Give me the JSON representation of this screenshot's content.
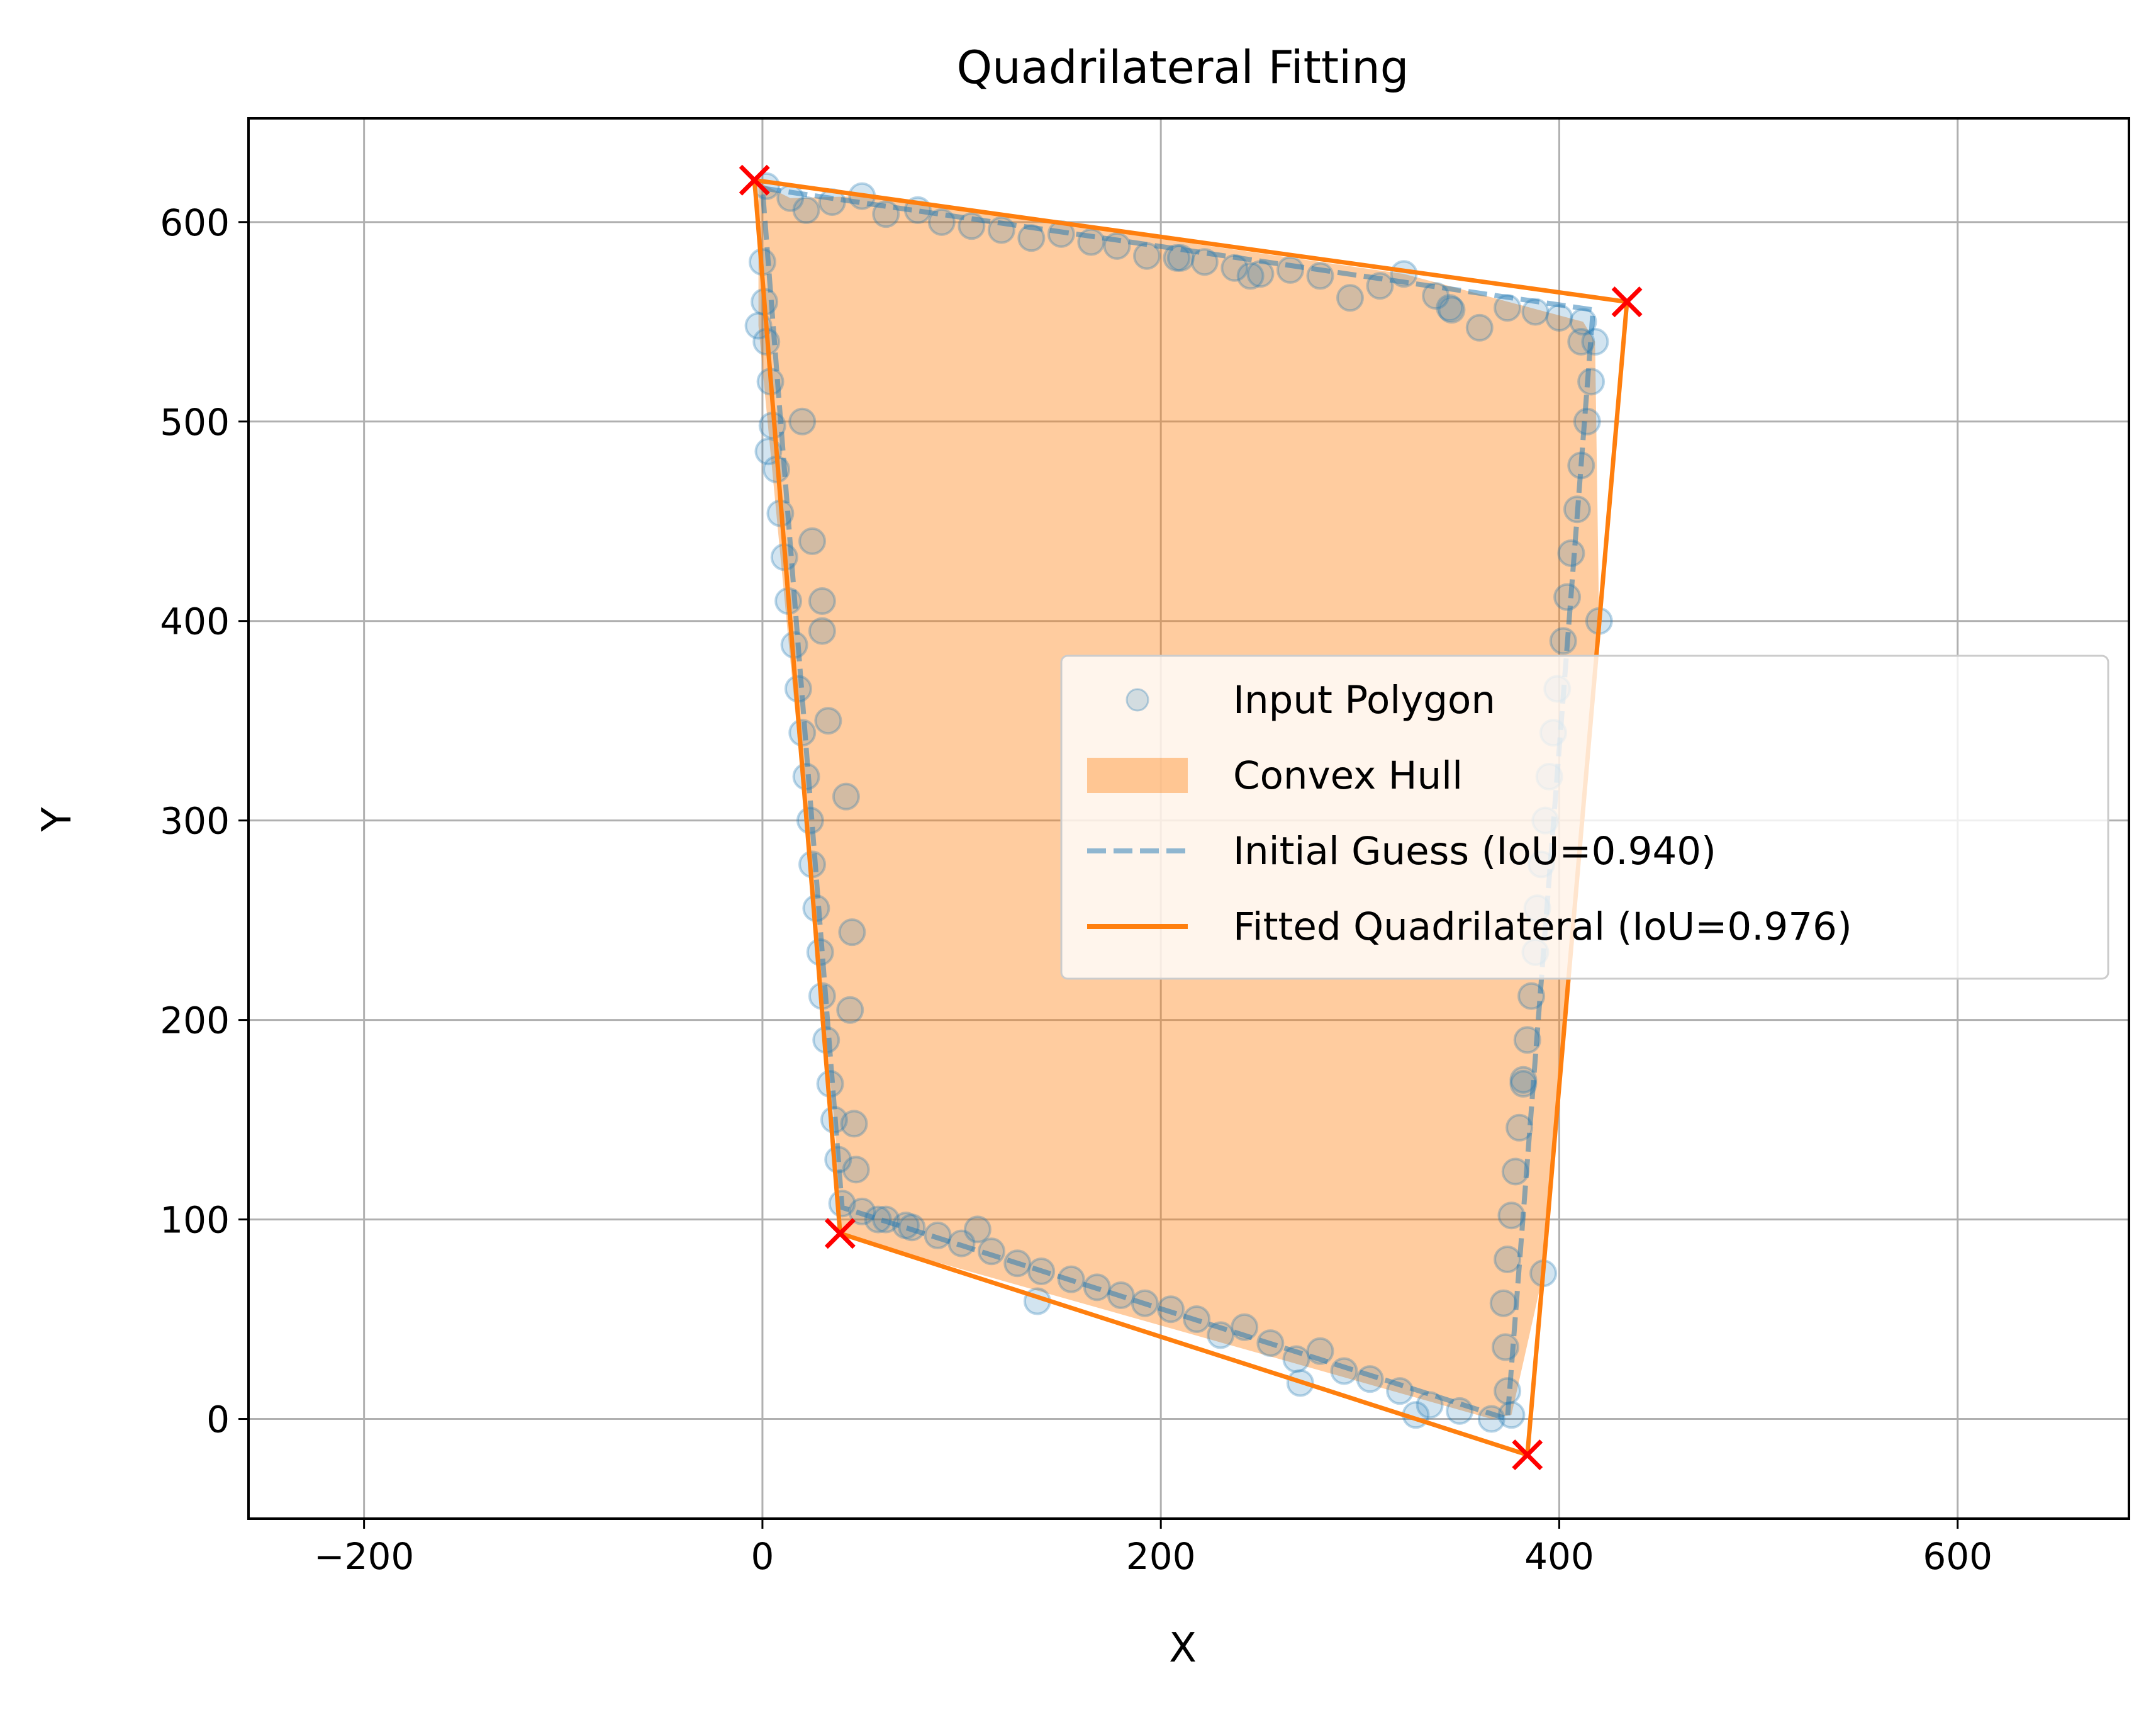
{
  "chart_data": {
    "type": "scatter",
    "title": "Quadrilateral Fitting",
    "xlabel": "X",
    "ylabel": "Y",
    "xlim": [
      -258,
      686
    ],
    "ylim": [
      -50,
      652
    ],
    "xticks": [
      -200,
      0,
      200,
      400,
      600
    ],
    "yticks": [
      0,
      100,
      200,
      300,
      400,
      500,
      600
    ],
    "xtick_labels": [
      "−200",
      "0",
      "200",
      "400",
      "600"
    ],
    "ytick_labels": [
      "0",
      "100",
      "200",
      "300",
      "400",
      "500",
      "600"
    ],
    "grid": true,
    "legend_position": "center-right",
    "colors": {
      "points": "#1f77b4",
      "hull": "#ff7f0e",
      "guess": "#1f77b4",
      "fitted": "#ff7f0e",
      "corners": "#ff0000",
      "grid": "#b0b0b0"
    },
    "series": [
      {
        "name": "Input Polygon",
        "kind": "scatter",
        "points": [
          [
            2,
            618
          ],
          [
            14,
            612
          ],
          [
            22,
            606
          ],
          [
            35,
            610
          ],
          [
            50,
            613
          ],
          [
            62,
            604
          ],
          [
            78,
            606
          ],
          [
            90,
            600
          ],
          [
            105,
            598
          ],
          [
            120,
            596
          ],
          [
            135,
            592
          ],
          [
            150,
            594
          ],
          [
            165,
            590
          ],
          [
            178,
            588
          ],
          [
            193,
            583
          ],
          [
            208,
            582
          ],
          [
            222,
            580
          ],
          [
            237,
            577
          ],
          [
            250,
            574
          ],
          [
            265,
            576
          ],
          [
            280,
            573
          ],
          [
            295,
            562
          ],
          [
            310,
            568
          ],
          [
            322,
            574
          ],
          [
            338,
            563
          ],
          [
            346,
            556
          ],
          [
            360,
            547
          ],
          [
            374,
            557
          ],
          [
            388,
            555
          ],
          [
            400,
            552
          ],
          [
            412,
            550
          ],
          [
            418,
            540
          ],
          [
            416,
            520
          ],
          [
            414,
            500
          ],
          [
            411,
            478
          ],
          [
            409,
            456
          ],
          [
            406,
            434
          ],
          [
            404,
            412
          ],
          [
            402,
            390
          ],
          [
            399,
            366
          ],
          [
            397,
            344
          ],
          [
            395,
            322
          ],
          [
            393,
            300
          ],
          [
            391,
            278
          ],
          [
            389,
            256
          ],
          [
            388,
            234
          ],
          [
            386,
            212
          ],
          [
            384,
            190
          ],
          [
            382,
            168
          ],
          [
            380,
            146
          ],
          [
            378,
            124
          ],
          [
            376,
            102
          ],
          [
            374,
            80
          ],
          [
            372,
            58
          ],
          [
            373,
            36
          ],
          [
            374,
            14
          ],
          [
            376,
            2
          ],
          [
            366,
            0
          ],
          [
            350,
            4
          ],
          [
            335,
            7
          ],
          [
            320,
            14
          ],
          [
            305,
            20
          ],
          [
            292,
            24
          ],
          [
            280,
            34
          ],
          [
            268,
            30
          ],
          [
            255,
            38
          ],
          [
            242,
            46
          ],
          [
            230,
            42
          ],
          [
            218,
            50
          ],
          [
            205,
            55
          ],
          [
            192,
            58
          ],
          [
            180,
            62
          ],
          [
            168,
            66
          ],
          [
            155,
            70
          ],
          [
            140,
            74
          ],
          [
            128,
            78
          ],
          [
            115,
            84
          ],
          [
            100,
            88
          ],
          [
            88,
            92
          ],
          [
            75,
            96
          ],
          [
            62,
            100
          ],
          [
            50,
            104
          ],
          [
            40,
            108
          ],
          [
            38,
            130
          ],
          [
            36,
            150
          ],
          [
            34,
            168
          ],
          [
            32,
            190
          ],
          [
            30,
            212
          ],
          [
            29,
            234
          ],
          [
            27,
            256
          ],
          [
            25,
            278
          ],
          [
            24,
            300
          ],
          [
            22,
            322
          ],
          [
            20,
            344
          ],
          [
            18,
            366
          ],
          [
            16,
            388
          ],
          [
            13,
            410
          ],
          [
            11,
            432
          ],
          [
            9,
            454
          ],
          [
            7,
            476
          ],
          [
            5,
            498
          ],
          [
            4,
            520
          ],
          [
            2,
            540
          ],
          [
            1,
            560
          ],
          [
            0,
            580
          ],
          [
            -2,
            548
          ],
          [
            3,
            485
          ],
          [
            20,
            500
          ],
          [
            25,
            440
          ],
          [
            30,
            395
          ],
          [
            33,
            350
          ],
          [
            42,
            312
          ],
          [
            45,
            244
          ],
          [
            44,
            205
          ],
          [
            46,
            148
          ],
          [
            58,
            100
          ],
          [
            138,
            59
          ],
          [
            270,
            18
          ],
          [
            328,
            2
          ],
          [
            392,
            73
          ],
          [
            420,
            400
          ],
          [
            411,
            540
          ],
          [
            382,
            170
          ],
          [
            30,
            410
          ],
          [
            47,
            125
          ],
          [
            210,
            582
          ],
          [
            345,
            557
          ],
          [
            245,
            573
          ],
          [
            72,
            97
          ],
          [
            108,
            95
          ]
        ]
      },
      {
        "name": "Convex Hull",
        "kind": "area",
        "polygon": [
          [
            -2,
            620
          ],
          [
            14,
            612
          ],
          [
            50,
            613
          ],
          [
            322,
            574
          ],
          [
            412,
            550
          ],
          [
            418,
            540
          ],
          [
            420,
            400
          ],
          [
            392,
            73
          ],
          [
            376,
            2
          ],
          [
            366,
            0
          ],
          [
            40,
            92
          ],
          [
            36,
            150
          ],
          [
            -2,
            548
          ]
        ]
      },
      {
        "name": "Initial Guess (IoU=0.940)",
        "kind": "line",
        "points": [
          [
            0,
            617
          ],
          [
            417,
            556
          ],
          [
            374,
            0
          ],
          [
            40,
            106
          ],
          [
            0,
            617
          ]
        ]
      },
      {
        "name": "Fitted Quadrilateral (IoU=0.976)",
        "kind": "line",
        "points": [
          [
            -4,
            621
          ],
          [
            434,
            560
          ],
          [
            384,
            -18
          ],
          [
            39,
            93
          ],
          [
            -4,
            621
          ]
        ]
      },
      {
        "kind": "corners",
        "points": [
          [
            -4,
            621
          ],
          [
            434,
            560
          ],
          [
            384,
            -18
          ],
          [
            39,
            93
          ]
        ]
      }
    ]
  }
}
